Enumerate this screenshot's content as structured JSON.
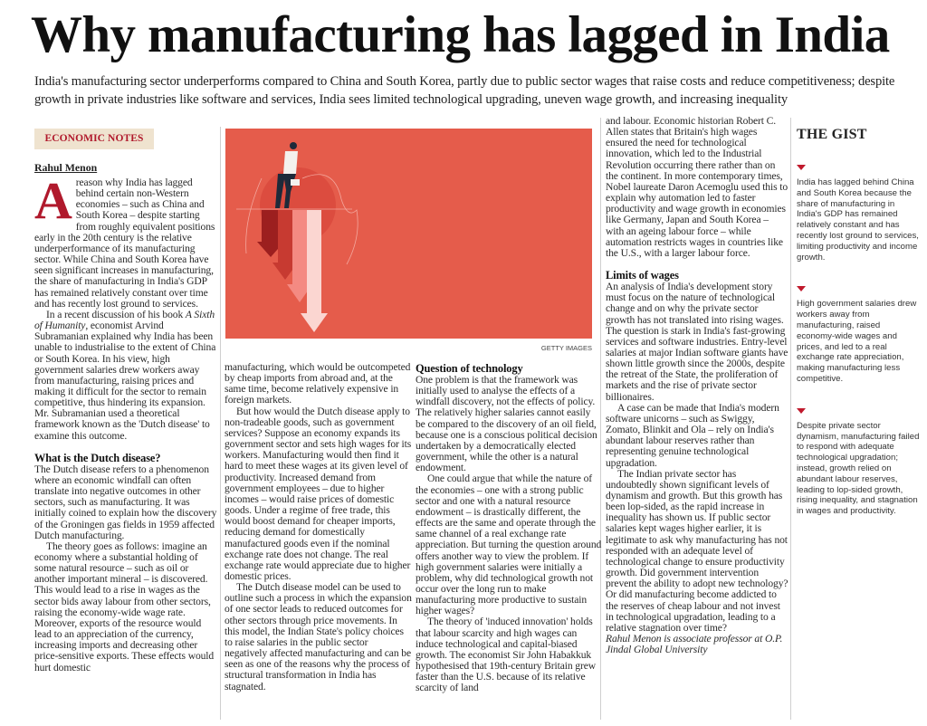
{
  "headline": "Why manufacturing has lagged in India",
  "standfirst": "India's manufacturing sector underperforms compared to China and South Korea, partly due to public sector wages that raise costs and reduce competitiveness; despite growth in private industries like software and services, India sees limited technological upgrading, uneven wage growth, and increasing inequality",
  "section_label": "ECONOMIC NOTES",
  "byline": "Rahul Menon",
  "photo_credit": "GETTY IMAGES",
  "colors": {
    "accent": "#b0192c",
    "badge_bg": "#efe3cf",
    "illustration_bg": "#e55c4b"
  },
  "article": {
    "dropcap": "A",
    "p1": "reason why India has lagged behind certain non-Western economies – such as China and South Korea – despite starting from roughly equivalent positions early in the 20th century is the relative underperformance of its manufacturing sector. While China and South Korea have seen significant increases in manufacturing, the share of manufacturing in India's GDP has remained relatively constant over time and has recently lost ground to services.",
    "p2_before": "In a recent discussion of his book ",
    "p2_italic": "A Sixth of Humanity",
    "p2_after": ", economist Arvind Subramanian explained why India has been unable to industrialise to the extent of China or South Korea. In his view, high government salaries drew workers away from manufacturing, raising prices and making it difficult for the sector to remain competitive, thus hindering its expansion. Mr. Subramanian used a theoretical framework known as the 'Dutch disease' to examine this outcome.",
    "h1": "What is the Dutch disease?",
    "p3": "The Dutch disease refers to a phenomenon where an economic windfall can often translate into negative outcomes in other sectors, such as manufacturing. It was initially coined to explain how the discovery of the Groningen gas fields in 1959 affected Dutch manufacturing.",
    "p4": "The theory goes as follows: imagine an economy where a substantial holding of some natural resource – such as oil or another important mineral – is discovered. This would lead to a rise in wages as the sector bids away labour from other sectors, raising the economy-wide wage rate. Moreover, exports of the resource would lead to an appreciation of the currency, increasing imports and decreasing other price-sensitive exports. These effects would hurt domestic",
    "p5": "manufacturing, which would be outcompeted by cheap imports from abroad and, at the same time, become relatively expensive in foreign markets.",
    "p6": "But how would the Dutch disease apply to non-tradeable goods, such as government services? Suppose an economy expands its government sector and sets high wages for its workers. Manufacturing would then find it hard to meet these wages at its given level of productivity. Increased demand from government employees – due to higher incomes – would raise prices of domestic goods. Under a regime of free trade, this would boost demand for cheaper imports, reducing demand for domestically manufactured goods even if the nominal exchange rate does not change. The real exchange rate would appreciate due to higher domestic prices.",
    "p7": "The Dutch disease model can be used to outline such a process in which the expansion of one sector leads to reduced outcomes for other sectors through price movements. In this model, the Indian State's policy choices to raise salaries in the public sector negatively affected manufacturing and can be seen as one of the reasons why the process of structural transformation in India has stagnated.",
    "h2": "Question of technology",
    "p8": "One problem is that the framework was initially used to analyse the effects of a windfall discovery, not the effects of policy. The relatively higher salaries cannot easily be compared to the discovery of an oil field, because one is a conscious political decision undertaken by a democratically elected government, while the other is a natural endowment.",
    "p9": "One could argue that while the nature of the economies – one with a strong public sector and one with a natural resource endowment – is drastically different, the effects are the same and operate through the same channel of a real exchange rate appreciation. But turning the question around offers another way to view the problem. If high government salaries were initially a problem, why did technological growth not occur over the long run to make manufacturing more productive to sustain higher wages?",
    "p10": "The theory of 'induced innovation' holds that labour scarcity and high wages can induce technological and capital-biased growth. The economist Sir John Habakkuk hypothesised that 19th-century Britain grew faster than the U.S. because of its relative scarcity of land",
    "p11": "and labour. Economic historian Robert C. Allen states that Britain's high wages ensured the need for technological innovation, which led to the Industrial Revolution occurring there rather than on the continent. In more contemporary times, Nobel laureate Daron Acemoglu used this to explain why automation led to faster productivity and wage growth in economies like Germany, Japan and South Korea – with an ageing labour force – while automation restricts wages in countries like the U.S., with a larger labour force.",
    "h3": "Limits of wages",
    "p12": "An analysis of India's development story must focus on the nature of technological change and on why the private sector growth has not translated into rising wages. The question is stark in India's fast-growing services and software industries. Entry-level salaries at major Indian software giants have shown little growth since the 2000s, despite the retreat of the State, the proliferation of markets and the rise of private sector billionaires.",
    "p13": "A case can be made that India's modern software unicorns – such as Swiggy, Zomato, Blinkit and Ola – rely on India's abundant labour reserves rather than representing genuine technological upgradation.",
    "p14": "The Indian private sector has undoubtedly shown significant levels of dynamism and growth. But this growth has been lop-sided, as the rapid increase in inequality has shown us. If public sector salaries kept wages higher earlier, it is legitimate to ask why manufacturing has not responded with an adequate level of technological change to ensure productivity growth. Did government intervention prevent the ability to adopt new technology? Or did manufacturing become addicted to the reserves of cheap labour and not invest in technological upgradation, leading to a relative stagnation over time?",
    "author_note": "Rahul Menon is associate professor at O.P. Jindal Global University"
  },
  "gist": {
    "title": "THE GIST",
    "points": [
      "India has lagged behind China and South Korea because the share of manufacturing in India's GDP has remained relatively constant and has recently lost ground to services, limiting productivity and income growth.",
      "High government salaries drew workers away from manufacturing, raised economy-wide wages and prices, and led to a real exchange rate appreciation, making manufacturing less competitive.",
      "Despite private sector dynamism, manufacturing failed to respond with adequate technological upgradation; instead, growth relied on abundant labour reserves, leading to lop-sided growth, rising inequality, and stagnation in wages and productivity."
    ]
  }
}
